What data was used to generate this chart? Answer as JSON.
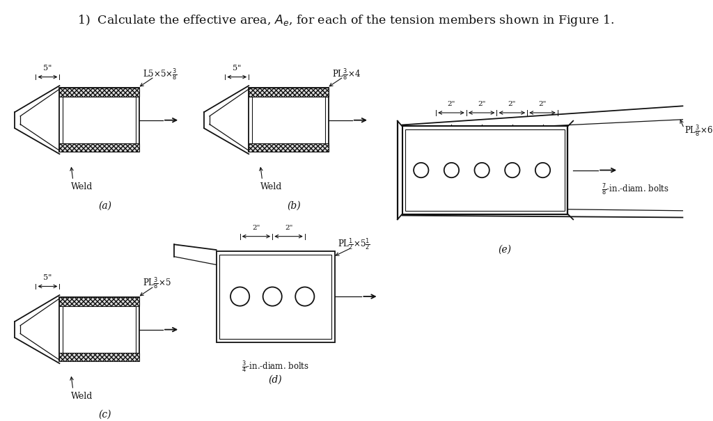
{
  "title_parts": [
    "1)  Calculate the effective area, ",
    "A",
    "e",
    ", for each of the tension members shown in Figure 1."
  ],
  "bg_color": "#ffffff",
  "text_color": "#222222",
  "fig_width": 10.24,
  "fig_height": 6.05,
  "dpi": 100
}
